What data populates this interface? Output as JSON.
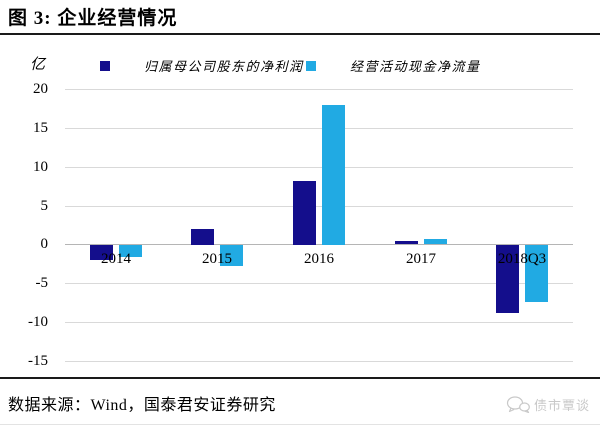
{
  "title": "图 3: 企业经营情况",
  "chart_data": {
    "type": "bar",
    "categories": [
      "2014",
      "2015",
      "2016",
      "2017",
      "2018Q3"
    ],
    "series": [
      {
        "name": "归属母公司股东的净利润",
        "color": "#140e8c",
        "values": [
          -1.9,
          2.0,
          8.2,
          0.4,
          -8.7
        ]
      },
      {
        "name": "经营活动现金净流量",
        "color": "#21aae3",
        "values": [
          -1.6,
          -2.7,
          18.0,
          0.7,
          -7.3
        ]
      }
    ],
    "title": "企业经营情况",
    "xlabel": "",
    "ylabel": "亿",
    "ylim": [
      -15,
      20
    ],
    "yticks": [
      20,
      15,
      10,
      5,
      0,
      -5,
      -10,
      -15
    ],
    "grid": true,
    "legend_position": "top",
    "gridline_color": "#d9d9d9",
    "zero_line_color": "#b5b5b5"
  },
  "footer": {
    "source": "数据来源：Wind，国泰君安证券研究",
    "watermark": "债市覃谈"
  }
}
